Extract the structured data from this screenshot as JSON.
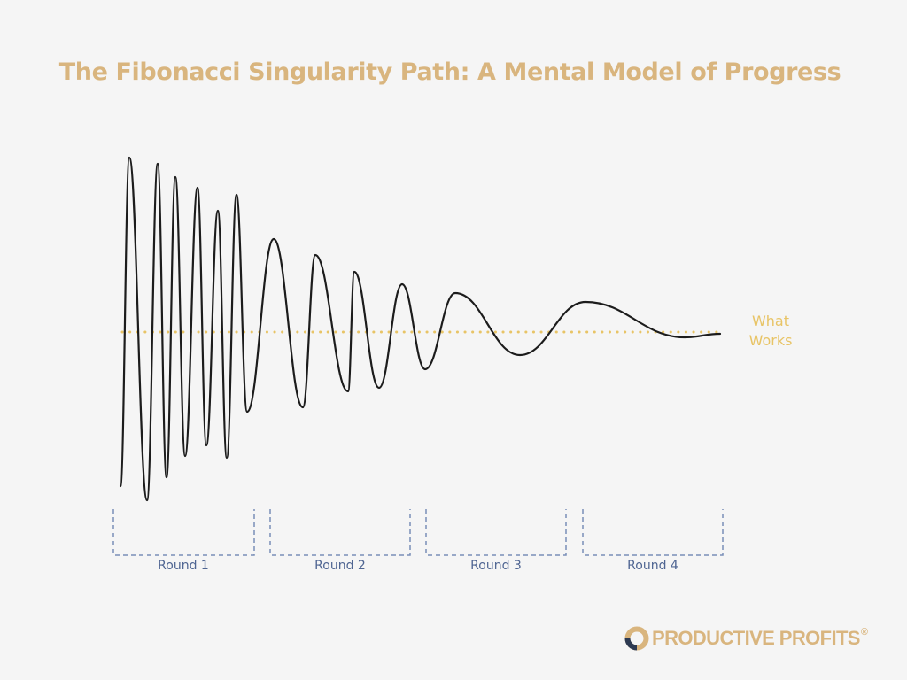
{
  "title": "The Fibonacci Singularity Path: A Mental Model of Progress",
  "target_line": {
    "label_line1": "What",
    "label_line2": "Works",
    "color": "#e8c466"
  },
  "rounds": [
    {
      "label": "Round 1"
    },
    {
      "label": "Round 2"
    },
    {
      "label": "Round 3"
    },
    {
      "label": "Round 4"
    }
  ],
  "colors": {
    "title": "#d9b57e",
    "curve": "#1c1c1c",
    "bracket": "#7a8fb8",
    "round_label": "#4f6592",
    "background": "#f5f5f5"
  },
  "logo": {
    "text": "PRODUCTIVE PROFITS",
    "registered_mark": "®",
    "icon": "ring-logo-icon"
  }
}
